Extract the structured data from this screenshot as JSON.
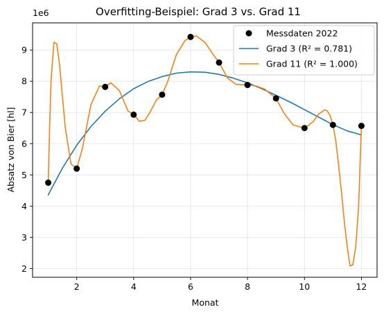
{
  "chart_data": {
    "type": "line",
    "title": "Overfitting-Beispiel: Grad 3 vs. Grad 11",
    "xlabel": "Monat",
    "ylabel": "Absatz von Bier [hl]",
    "y_offset_label": "1e6",
    "xlim": [
      0.45,
      12.55
    ],
    "ylim": [
      1.72,
      9.87
    ],
    "y_scale_factor": 1000000,
    "x_ticks": [
      2,
      4,
      6,
      8,
      10,
      12
    ],
    "y_ticks": [
      2,
      3,
      4,
      5,
      6,
      7,
      8,
      9
    ],
    "grid": true,
    "legend_position": "top-right",
    "colors": {
      "points": "#000000",
      "grad3": "#1f77b4",
      "grad11": "#ff7f0e"
    },
    "scatter": {
      "name": "Messdaten 2022",
      "x": [
        1,
        2,
        3,
        4,
        5,
        6,
        7,
        8,
        9,
        10,
        11,
        12
      ],
      "y": [
        4.75,
        5.2,
        7.82,
        6.93,
        7.57,
        9.42,
        8.6,
        7.88,
        7.45,
        6.5,
        6.6,
        6.57
      ]
    },
    "series": [
      {
        "name": "Grad 3 (R² = 0.781)",
        "color": "#1f77b4",
        "x": [
          1,
          1.5,
          2,
          2.5,
          3,
          3.5,
          4,
          4.5,
          5,
          5.5,
          6,
          6.5,
          7,
          7.5,
          8,
          8.5,
          9,
          9.5,
          10,
          10.5,
          11,
          11.5,
          12
        ],
        "y": [
          4.36,
          5.22,
          5.95,
          6.55,
          7.04,
          7.44,
          7.76,
          7.99,
          8.15,
          8.26,
          8.3,
          8.29,
          8.22,
          8.1,
          7.95,
          7.76,
          7.55,
          7.33,
          7.09,
          6.85,
          6.61,
          6.41,
          6.28
        ]
      },
      {
        "name": "Grad 11 (R² = 1.000)",
        "color": "#ff7f0e",
        "x": [
          1,
          1.05,
          1.1,
          1.2,
          1.3,
          1.4,
          1.6,
          1.8,
          2,
          2.2,
          2.5,
          2.8,
          3,
          3.2,
          3.5,
          3.8,
          4,
          4.2,
          4.4,
          4.6,
          4.8,
          5,
          5.2,
          5.5,
          5.8,
          6,
          6.2,
          6.5,
          6.8,
          7,
          7.3,
          7.6,
          8,
          8.3,
          8.6,
          9,
          9.3,
          9.6,
          10,
          10.3,
          10.5,
          10.7,
          10.8,
          10.9,
          11,
          11.1,
          11.2,
          11.3,
          11.4,
          11.5,
          11.6,
          11.7,
          11.8,
          11.9,
          12
        ],
        "y": [
          4.75,
          6.6,
          8.05,
          9.25,
          9.2,
          8.5,
          6.5,
          5.35,
          5.2,
          5.85,
          7.25,
          7.85,
          7.82,
          7.95,
          7.7,
          7.05,
          6.93,
          6.72,
          6.75,
          7.05,
          7.4,
          7.57,
          8.0,
          8.85,
          9.3,
          9.42,
          9.45,
          9.25,
          8.85,
          8.6,
          8.1,
          7.9,
          7.88,
          7.85,
          7.75,
          7.45,
          6.95,
          6.6,
          6.5,
          6.7,
          6.95,
          7.08,
          7.05,
          6.9,
          6.6,
          6.1,
          5.3,
          4.45,
          3.5,
          2.7,
          2.08,
          2.12,
          2.7,
          3.95,
          6.57
        ]
      }
    ]
  }
}
